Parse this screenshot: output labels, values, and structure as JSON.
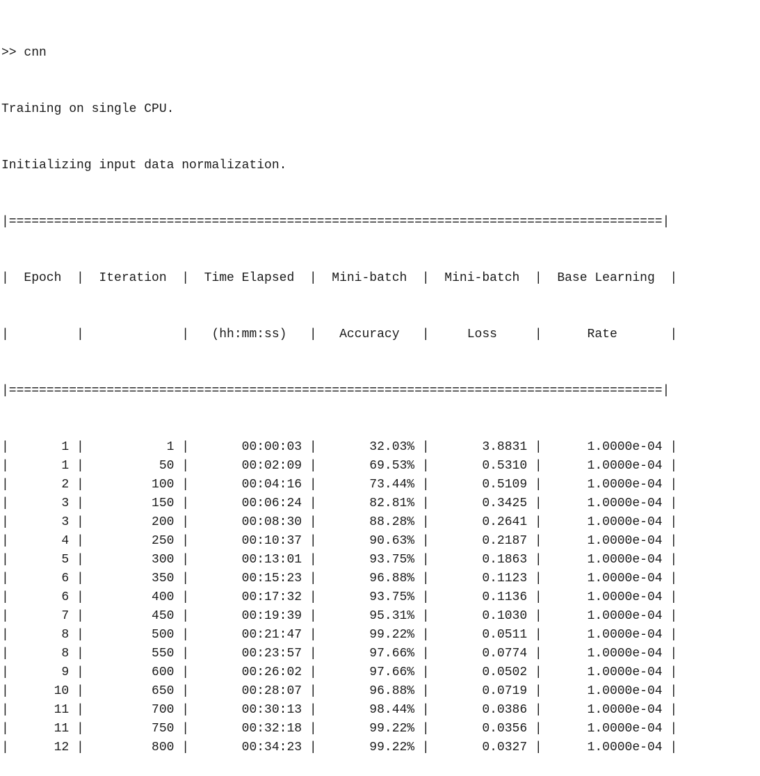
{
  "console": {
    "command_line": ">> cnn",
    "status_lines": [
      "Training on single CPU.",
      "Initializing input data normalization."
    ],
    "table": {
      "border": "|=======================================================================================|",
      "header_rows": [
        "|  Epoch  |  Iteration  |  Time Elapsed  |  Mini-batch  |  Mini-batch  |  Base Learning  |",
        "|         |             |   (hh:mm:ss)   |   Accuracy   |     Loss     |      Rate       |"
      ],
      "columns": [
        "Epoch",
        "Iteration",
        "Time Elapsed (hh:mm:ss)",
        "Mini-batch Accuracy",
        "Mini-batch Loss",
        "Base Learning Rate"
      ],
      "rows": [
        {
          "epoch": "1",
          "iteration": "1",
          "time": "00:00:03",
          "accuracy": "32.03%",
          "loss": "3.8831",
          "lr": "1.0000e-04"
        },
        {
          "epoch": "1",
          "iteration": "50",
          "time": "00:02:09",
          "accuracy": "69.53%",
          "loss": "0.5310",
          "lr": "1.0000e-04"
        },
        {
          "epoch": "2",
          "iteration": "100",
          "time": "00:04:16",
          "accuracy": "73.44%",
          "loss": "0.5109",
          "lr": "1.0000e-04"
        },
        {
          "epoch": "3",
          "iteration": "150",
          "time": "00:06:24",
          "accuracy": "82.81%",
          "loss": "0.3425",
          "lr": "1.0000e-04"
        },
        {
          "epoch": "3",
          "iteration": "200",
          "time": "00:08:30",
          "accuracy": "88.28%",
          "loss": "0.2641",
          "lr": "1.0000e-04"
        },
        {
          "epoch": "4",
          "iteration": "250",
          "time": "00:10:37",
          "accuracy": "90.63%",
          "loss": "0.2187",
          "lr": "1.0000e-04"
        },
        {
          "epoch": "5",
          "iteration": "300",
          "time": "00:13:01",
          "accuracy": "93.75%",
          "loss": "0.1863",
          "lr": "1.0000e-04"
        },
        {
          "epoch": "6",
          "iteration": "350",
          "time": "00:15:23",
          "accuracy": "96.88%",
          "loss": "0.1123",
          "lr": "1.0000e-04"
        },
        {
          "epoch": "6",
          "iteration": "400",
          "time": "00:17:32",
          "accuracy": "93.75%",
          "loss": "0.1136",
          "lr": "1.0000e-04"
        },
        {
          "epoch": "7",
          "iteration": "450",
          "time": "00:19:39",
          "accuracy": "95.31%",
          "loss": "0.1030",
          "lr": "1.0000e-04"
        },
        {
          "epoch": "8",
          "iteration": "500",
          "time": "00:21:47",
          "accuracy": "99.22%",
          "loss": "0.0511",
          "lr": "1.0000e-04"
        },
        {
          "epoch": "8",
          "iteration": "550",
          "time": "00:23:57",
          "accuracy": "97.66%",
          "loss": "0.0774",
          "lr": "1.0000e-04"
        },
        {
          "epoch": "9",
          "iteration": "600",
          "time": "00:26:02",
          "accuracy": "97.66%",
          "loss": "0.0502",
          "lr": "1.0000e-04"
        },
        {
          "epoch": "10",
          "iteration": "650",
          "time": "00:28:07",
          "accuracy": "96.88%",
          "loss": "0.0719",
          "lr": "1.0000e-04"
        },
        {
          "epoch": "11",
          "iteration": "700",
          "time": "00:30:13",
          "accuracy": "98.44%",
          "loss": "0.0386",
          "lr": "1.0000e-04"
        },
        {
          "epoch": "11",
          "iteration": "750",
          "time": "00:32:18",
          "accuracy": "99.22%",
          "loss": "0.0356",
          "lr": "1.0000e-04"
        },
        {
          "epoch": "12",
          "iteration": "800",
          "time": "00:34:23",
          "accuracy": "99.22%",
          "loss": "0.0327",
          "lr": "1.0000e-04"
        }
      ]
    }
  }
}
